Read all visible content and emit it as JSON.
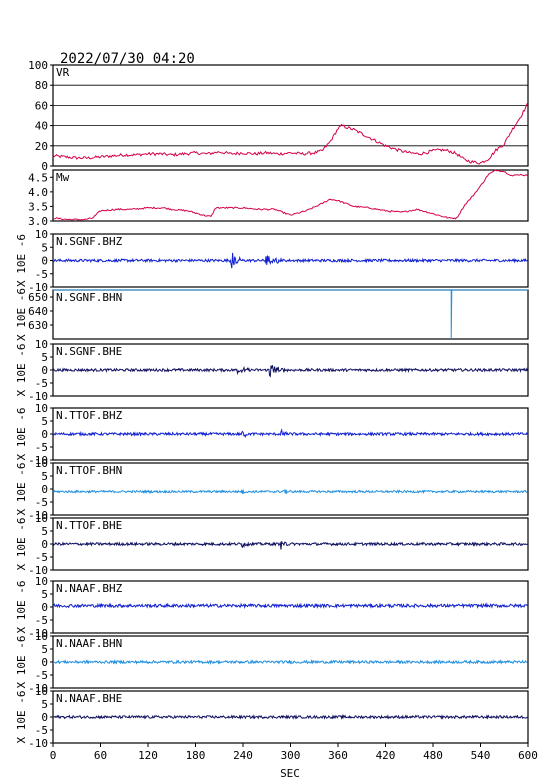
{
  "header": {
    "timestamp": "2022/07/30 04:20"
  },
  "colors": {
    "frame": "#000000",
    "grid": "#000000",
    "vr": "#d4004a",
    "mw": "#d4004a",
    "dark_blue": "#101060",
    "blue": "#1020d0",
    "light_blue": "#2090e0"
  },
  "chart_data": {
    "type": "line",
    "xlabel": "SEC",
    "xlim": [
      0,
      600
    ],
    "xticks": [
      "0",
      "60",
      "120",
      "180",
      "240",
      "300",
      "360",
      "420",
      "480",
      "540",
      "600"
    ],
    "panels": [
      {
        "name": "VR",
        "label": "VR",
        "ylim": [
          0,
          100
        ],
        "yticks": [
          "0",
          "20",
          "40",
          "60",
          "80",
          "100"
        ],
        "grid": true,
        "color": "#d4004a",
        "series": {
          "x": [
            0,
            15,
            30,
            45,
            60,
            75,
            90,
            105,
            120,
            135,
            150,
            165,
            180,
            195,
            210,
            225,
            240,
            255,
            270,
            285,
            300,
            315,
            330,
            340,
            350,
            360,
            365,
            372,
            380,
            390,
            400,
            410,
            420,
            435,
            450,
            462,
            470,
            480,
            490,
            500,
            510,
            520,
            530,
            540,
            550,
            560,
            570,
            580,
            590,
            600
          ],
          "y": [
            10,
            9,
            8,
            8,
            9,
            10,
            11,
            11,
            12,
            12,
            11,
            12,
            13,
            12,
            14,
            12,
            13,
            12,
            13,
            12,
            13,
            12,
            13,
            15,
            24,
            37,
            40,
            38,
            36,
            32,
            28,
            24,
            20,
            16,
            13,
            12,
            13,
            15,
            16,
            15,
            12,
            6,
            4,
            3,
            7,
            16,
            22,
            36,
            48,
            62
          ]
        }
      },
      {
        "name": "Mw",
        "label": "Mw",
        "ylim": [
          3.0,
          4.75
        ],
        "yticks": [
          "3.0",
          "3.5",
          "4.0",
          "4.5"
        ],
        "grid": false,
        "color": "#d4004a",
        "series": {
          "x": [
            0,
            20,
            40,
            50,
            60,
            80,
            100,
            120,
            140,
            150,
            170,
            190,
            200,
            205,
            220,
            240,
            260,
            280,
            300,
            320,
            340,
            350,
            360,
            380,
            400,
            420,
            440,
            460,
            480,
            500,
            510,
            520,
            530,
            540,
            550,
            560,
            570,
            580,
            590,
            600
          ],
          "y": [
            3.1,
            3.05,
            3.05,
            3.1,
            3.35,
            3.4,
            3.4,
            3.45,
            3.45,
            3.4,
            3.35,
            3.2,
            3.15,
            3.45,
            3.45,
            3.45,
            3.4,
            3.4,
            3.2,
            3.35,
            3.6,
            3.75,
            3.7,
            3.5,
            3.45,
            3.35,
            3.3,
            3.4,
            3.25,
            3.1,
            3.1,
            3.55,
            3.85,
            4.2,
            4.6,
            4.75,
            4.7,
            4.55,
            4.6,
            4.55
          ]
        }
      },
      {
        "name": "N.SGNF.BHZ",
        "label": "N.SGNF.BHZ",
        "ylabel": "X 10E -6",
        "ylim": [
          -10,
          10
        ],
        "yticks": [
          "-10",
          "-5",
          "0",
          "5",
          "10"
        ],
        "color": "#1020d0",
        "baseline": 0,
        "noise": 0.5,
        "bursts": [
          {
            "t": 225,
            "amp": 4,
            "dur": 14
          },
          {
            "t": 268,
            "amp": 3,
            "dur": 22
          }
        ]
      },
      {
        "name": "N.SGNF.BHN",
        "label": "N.SGNF.BHN",
        "ylabel": "X 10E -6",
        "ylim": [
          620,
          655
        ],
        "yticks": [
          "630",
          "640",
          "650"
        ],
        "color": "#2090e0",
        "flatline": 655,
        "spike": {
          "t": 503,
          "from": 655,
          "to": 620
        }
      },
      {
        "name": "N.SGNF.BHE",
        "label": "N.SGNF.BHE",
        "ylabel": "X 10E -6",
        "ylim": [
          -10,
          10
        ],
        "yticks": [
          "-10",
          "-5",
          "0",
          "5",
          "10"
        ],
        "color": "#101060",
        "baseline": 0,
        "noise": 0.5,
        "bursts": [
          {
            "t": 232,
            "amp": 2,
            "dur": 16
          },
          {
            "t": 272,
            "amp": 4,
            "dur": 20
          }
        ]
      },
      {
        "name": "N.TTOF.BHZ",
        "label": "N.TTOF.BHZ",
        "ylabel": "X 10E -6",
        "ylim": [
          -10,
          10
        ],
        "yticks": [
          "-10",
          "-5",
          "0",
          "5",
          "10"
        ],
        "color": "#1020d0",
        "baseline": 0,
        "noise": 0.5,
        "bursts": [
          {
            "t": 238,
            "amp": 2.5,
            "dur": 10
          },
          {
            "t": 288,
            "amp": 2,
            "dur": 10
          }
        ]
      },
      {
        "name": "N.TTOF.BHN",
        "label": "N.TTOF.BHN",
        "ylabel": "X 10E -6",
        "ylim": [
          -10,
          10
        ],
        "yticks": [
          "-10",
          "-5",
          "0",
          "5",
          "10"
        ],
        "color": "#2090e0",
        "baseline": -1,
        "noise": 0.4,
        "bursts": [
          {
            "t": 238,
            "amp": 1.2,
            "dur": 10
          },
          {
            "t": 290,
            "amp": 1.2,
            "dur": 10
          }
        ]
      },
      {
        "name": "N.TTOF.BHE",
        "label": "N.TTOF.BHE",
        "ylabel": "X 10E -6",
        "ylim": [
          -10,
          10
        ],
        "yticks": [
          "-10",
          "-5",
          "0",
          "5",
          "10"
        ],
        "color": "#101060",
        "baseline": 0,
        "noise": 0.5,
        "bursts": [
          {
            "t": 238,
            "amp": 1.5,
            "dur": 10
          },
          {
            "t": 288,
            "amp": 1.8,
            "dur": 10
          }
        ]
      },
      {
        "name": "N.NAAF.BHZ",
        "label": "N.NAAF.BHZ",
        "ylabel": "X 10E -6",
        "ylim": [
          -10,
          10
        ],
        "yticks": [
          "-10",
          "-5",
          "0",
          "5",
          "10"
        ],
        "color": "#1020d0",
        "baseline": 0.5,
        "noise": 0.6,
        "bursts": []
      },
      {
        "name": "N.NAAF.BHN",
        "label": "N.NAAF.BHN",
        "ylabel": "X 10E -6",
        "ylim": [
          -10,
          10
        ],
        "yticks": [
          "-10",
          "-5",
          "0",
          "5",
          "10"
        ],
        "color": "#2090e0",
        "baseline": 0,
        "noise": 0.5,
        "bursts": []
      },
      {
        "name": "N.NAAF.BHE",
        "label": "N.NAAF.BHE",
        "ylabel": "X 10E -6",
        "ylim": [
          -10,
          10
        ],
        "yticks": [
          "-10",
          "-5",
          "0",
          "5",
          "10"
        ],
        "color": "#101060",
        "baseline": 0,
        "noise": 0.5,
        "bursts": []
      }
    ]
  }
}
